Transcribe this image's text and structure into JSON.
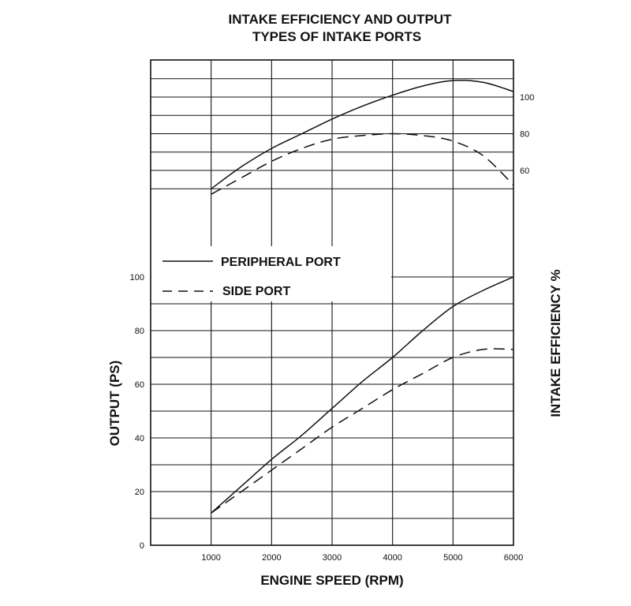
{
  "chart_data": {
    "type": "line",
    "title_lines": [
      "INTAKE EFFICIENCY AND OUTPUT",
      "TYPES OF INTAKE PORTS"
    ],
    "xlabel": "ENGINE SPEED (RPM)",
    "ylabel_left": "OUTPUT (PS)",
    "ylabel_right": "INTAKE EFFICIENCY %",
    "xlim": [
      0,
      6000
    ],
    "x_ticks": [
      1000,
      2000,
      3000,
      4000,
      5000,
      6000
    ],
    "output_axis": {
      "ylim": [
        0,
        100
      ],
      "ticks": [
        0,
        20,
        40,
        60,
        80,
        100
      ]
    },
    "efficiency_axis": {
      "ticks": [
        60,
        80,
        100
      ]
    },
    "grid": true,
    "legend": {
      "placement": "left",
      "entries": [
        {
          "label": "PERIPHERAL PORT",
          "style": "solid"
        },
        {
          "label": "SIDE PORT",
          "style": "dashed"
        }
      ]
    },
    "series": [
      {
        "name": "PERIPHERAL PORT",
        "metric": "intake_efficiency",
        "style": "solid",
        "x": [
          1000,
          1500,
          2000,
          2500,
          3000,
          3500,
          4000,
          4500,
          5000,
          5500,
          6000
        ],
        "y": [
          50,
          62,
          72,
          80,
          88,
          95,
          101,
          106,
          109,
          108,
          103
        ]
      },
      {
        "name": "SIDE PORT",
        "metric": "intake_efficiency",
        "style": "dashed",
        "x": [
          1000,
          1500,
          2000,
          2500,
          3000,
          3500,
          4000,
          4500,
          5000,
          5500,
          6000
        ],
        "y": [
          47,
          56,
          65,
          72,
          77,
          79,
          80,
          79,
          76,
          68,
          52
        ]
      },
      {
        "name": "PERIPHERAL PORT",
        "metric": "output",
        "style": "solid",
        "x": [
          1000,
          1500,
          2000,
          2500,
          3000,
          3500,
          4000,
          4500,
          5000,
          5500,
          6000
        ],
        "y": [
          12,
          22,
          32,
          41,
          51,
          61,
          70,
          80,
          89,
          95,
          100
        ]
      },
      {
        "name": "SIDE PORT",
        "metric": "output",
        "style": "dashed",
        "x": [
          1000,
          1500,
          2000,
          2500,
          3000,
          3500,
          4000,
          4500,
          5000,
          5500,
          6000
        ],
        "y": [
          12,
          20,
          28,
          36,
          44,
          51,
          58,
          64,
          70,
          73,
          73
        ]
      }
    ]
  }
}
